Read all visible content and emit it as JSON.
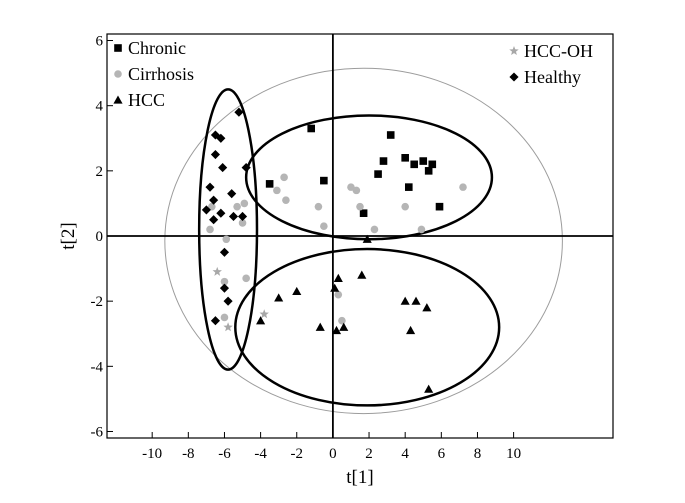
{
  "chart_data": {
    "type": "scatter",
    "title": "",
    "xlabel": "t[1]",
    "ylabel": "t[2]",
    "xlim": [
      -12.5,
      15.5
    ],
    "ylim": [
      -6.2,
      6.2
    ],
    "x_ticks": [
      -10,
      -8,
      -6,
      -4,
      -2,
      0,
      2,
      4,
      6,
      8,
      10
    ],
    "y_ticks": [
      6,
      4,
      2,
      0,
      -2,
      -4,
      -6
    ],
    "grid": false,
    "legend_left": [
      "Chronic",
      "Cirrhosis",
      "HCC"
    ],
    "legend_right": [
      "HCC-OH",
      "Healthy"
    ],
    "series": [
      {
        "name": "Chronic",
        "marker": "square",
        "color": "#000000",
        "points": [
          [
            -1.2,
            3.3
          ],
          [
            -0.5,
            1.7
          ],
          [
            -3.5,
            1.6
          ],
          [
            1.7,
            0.7
          ],
          [
            2.5,
            1.9
          ],
          [
            2.8,
            2.3
          ],
          [
            3.2,
            3.1
          ],
          [
            4.0,
            2.4
          ],
          [
            4.2,
            1.5
          ],
          [
            4.5,
            2.2
          ],
          [
            5.0,
            2.3
          ],
          [
            5.3,
            2.0
          ],
          [
            5.5,
            2.2
          ],
          [
            5.9,
            0.9
          ]
        ]
      },
      {
        "name": "Cirrhosis",
        "marker": "circle",
        "color": "#b5b5b5",
        "points": [
          [
            -6.7,
            0.9
          ],
          [
            -6.8,
            0.2
          ],
          [
            -5.9,
            -0.1
          ],
          [
            -6.0,
            -1.4
          ],
          [
            -5.3,
            0.9
          ],
          [
            -5.0,
            0.4
          ],
          [
            -4.9,
            1.0
          ],
          [
            -4.8,
            -1.3
          ],
          [
            -2.7,
            1.8
          ],
          [
            -3.1,
            1.4
          ],
          [
            -2.6,
            1.1
          ],
          [
            -0.8,
            0.9
          ],
          [
            -0.5,
            0.3
          ],
          [
            1.0,
            1.5
          ],
          [
            1.3,
            1.4
          ],
          [
            2.3,
            0.2
          ],
          [
            1.5,
            0.9
          ],
          [
            4.0,
            0.9
          ],
          [
            4.9,
            0.2
          ],
          [
            7.2,
            1.5
          ],
          [
            0.3,
            -1.8
          ],
          [
            0.5,
            -2.6
          ],
          [
            -6.0,
            -2.5
          ]
        ]
      },
      {
        "name": "HCC",
        "marker": "triangle",
        "color": "#000000",
        "points": [
          [
            1.9,
            -0.1
          ],
          [
            1.6,
            -1.2
          ],
          [
            0.3,
            -1.3
          ],
          [
            0.1,
            -1.6
          ],
          [
            -2.0,
            -1.7
          ],
          [
            -3.0,
            -1.9
          ],
          [
            -4.0,
            -2.6
          ],
          [
            -0.7,
            -2.8
          ],
          [
            0.2,
            -2.9
          ],
          [
            0.6,
            -2.8
          ],
          [
            4.0,
            -2.0
          ],
          [
            4.6,
            -2.0
          ],
          [
            5.2,
            -2.2
          ],
          [
            4.3,
            -2.9
          ],
          [
            5.3,
            -4.7
          ]
        ]
      },
      {
        "name": "HCC-OH",
        "marker": "star",
        "color": "#a8a8a8",
        "points": [
          [
            -6.4,
            -1.1
          ],
          [
            -5.8,
            -2.8
          ],
          [
            -3.8,
            -2.4
          ]
        ]
      },
      {
        "name": "Healthy",
        "marker": "diamond",
        "color": "#000000",
        "points": [
          [
            -6.5,
            3.1
          ],
          [
            -6.2,
            3.0
          ],
          [
            -5.2,
            3.8
          ],
          [
            -6.5,
            2.5
          ],
          [
            -6.1,
            2.1
          ],
          [
            -4.8,
            2.1
          ],
          [
            -6.8,
            1.5
          ],
          [
            -5.6,
            1.3
          ],
          [
            -6.6,
            1.1
          ],
          [
            -7.0,
            0.8
          ],
          [
            -6.2,
            0.7
          ],
          [
            -5.5,
            0.6
          ],
          [
            -5.0,
            0.6
          ],
          [
            -6.6,
            0.5
          ],
          [
            -6.0,
            -0.5
          ],
          [
            -5.8,
            -2.0
          ],
          [
            -6.5,
            -2.6
          ],
          [
            -6.0,
            -1.6
          ]
        ]
      }
    ],
    "ellipses": [
      {
        "name": "confidence-ellipse",
        "cx": 1.7,
        "cy": -0.15,
        "rx": 11.0,
        "ry": 5.3,
        "color": "#9c9c9c",
        "width": 1
      },
      {
        "name": "cluster-healthy",
        "cx": -5.8,
        "cy": 0.2,
        "rx": 1.6,
        "ry": 4.3,
        "color": "#000000",
        "width": 2.5
      },
      {
        "name": "cluster-chronic",
        "cx": 2.0,
        "cy": 1.8,
        "rx": 6.8,
        "ry": 1.9,
        "color": "#000000",
        "width": 2.5
      },
      {
        "name": "cluster-hcc",
        "cx": 1.9,
        "cy": -2.8,
        "rx": 7.3,
        "ry": 2.4,
        "color": "#000000",
        "width": 2.5
      }
    ]
  }
}
